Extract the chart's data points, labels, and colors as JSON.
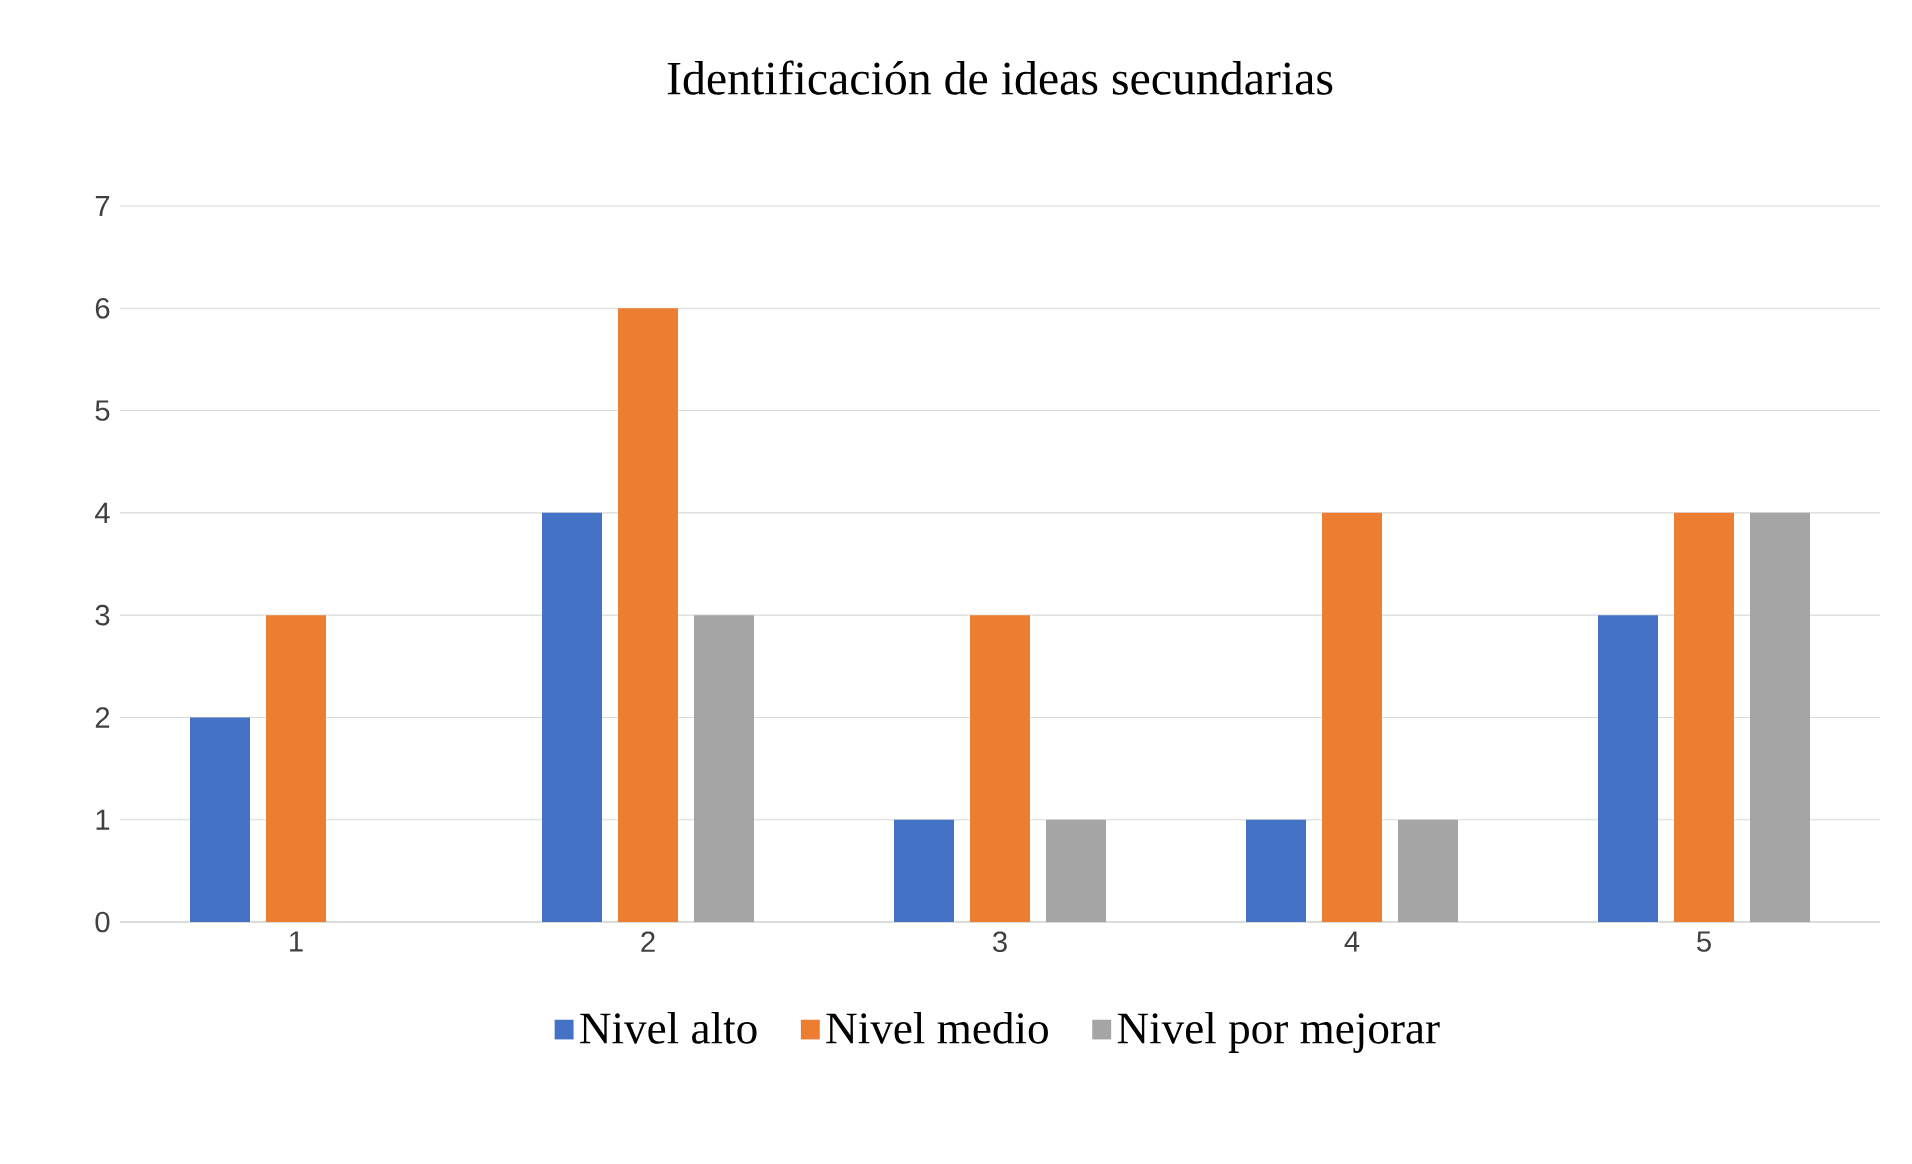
{
  "chart_data": {
    "type": "bar",
    "title": "Identificación de ideas secundarias",
    "categories": [
      "1",
      "2",
      "3",
      "4",
      "5"
    ],
    "series": [
      {
        "name": "Nivel alto",
        "color": "#4472c4",
        "values": [
          2,
          4,
          1,
          1,
          3
        ]
      },
      {
        "name": "Nivel medio",
        "color": "#ed7d31",
        "values": [
          3,
          6,
          3,
          4,
          4
        ]
      },
      {
        "name": "Nivel por mejorar",
        "color": "#a5a5a5",
        "values": [
          0,
          3,
          1,
          1,
          4
        ]
      }
    ],
    "ylim": [
      0,
      7
    ],
    "yticks": [
      0,
      1,
      2,
      3,
      4,
      5,
      6,
      7
    ],
    "grid": "y",
    "legend": "bottom"
  }
}
